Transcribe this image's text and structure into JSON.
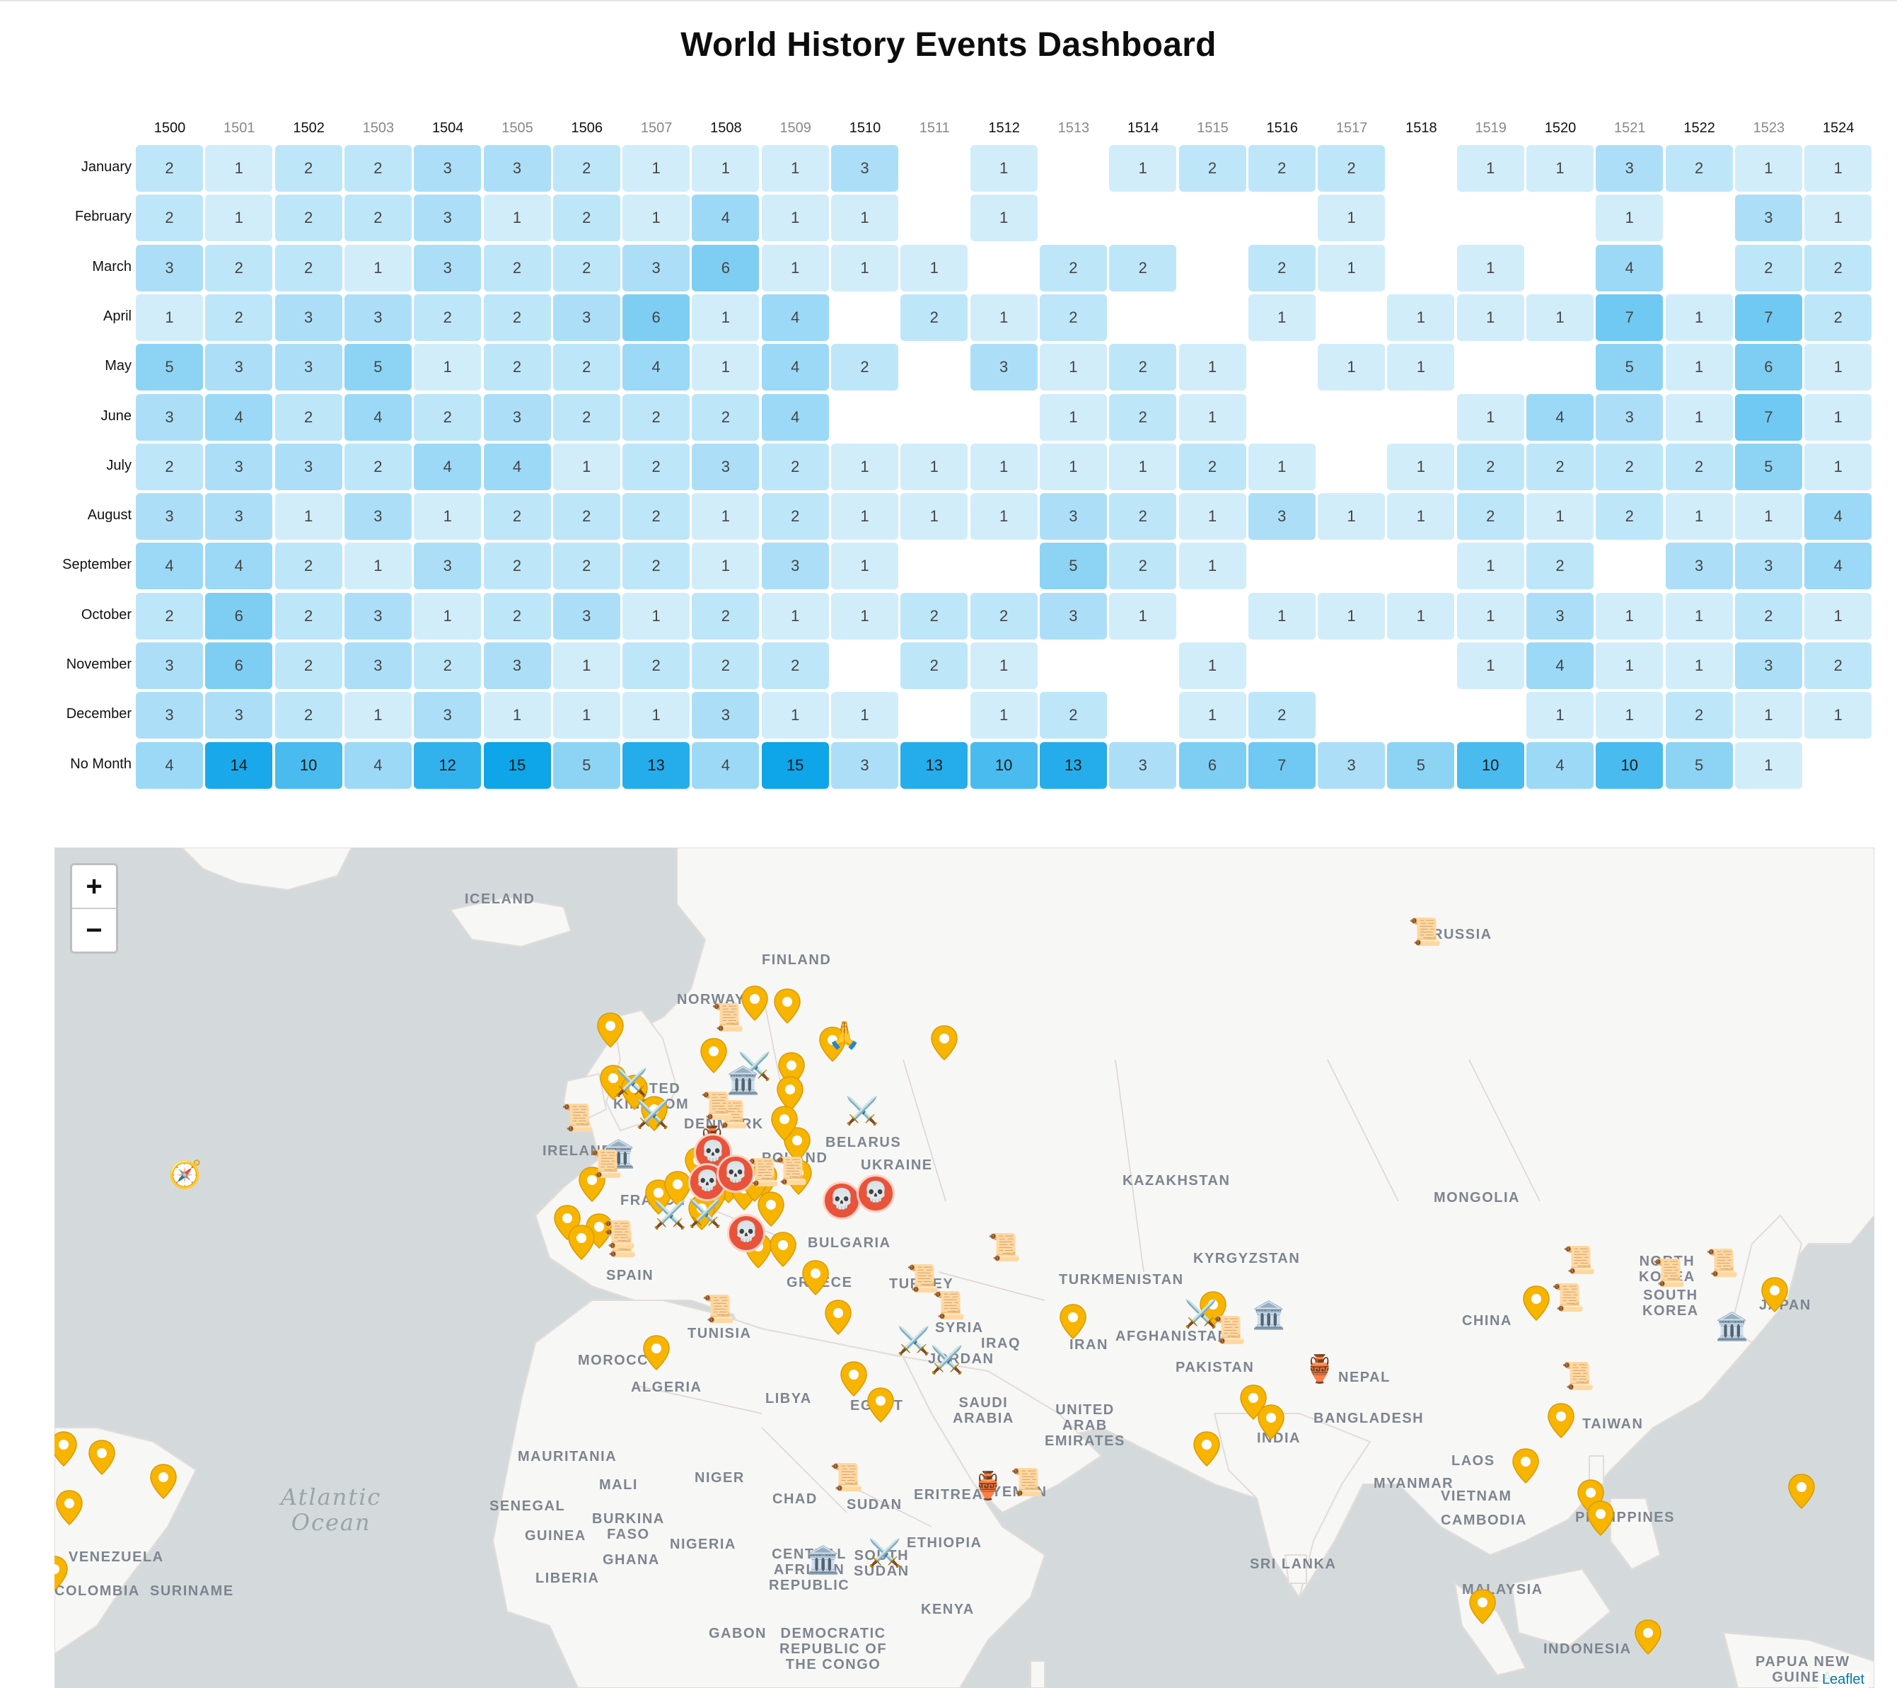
{
  "page": {
    "title": "World History Events Dashboard"
  },
  "heatmap": {
    "years": [
      "1500",
      "1501",
      "1502",
      "1503",
      "1504",
      "1505",
      "1506",
      "1507",
      "1508",
      "1509",
      "1510",
      "1511",
      "1512",
      "1513",
      "1514",
      "1515",
      "1516",
      "1517",
      "1518",
      "1519",
      "1520",
      "1521",
      "1522",
      "1523",
      "1524"
    ],
    "rows": [
      {
        "label": "January",
        "values": [
          2,
          1,
          2,
          2,
          3,
          3,
          2,
          1,
          1,
          1,
          3,
          null,
          1,
          null,
          1,
          2,
          2,
          2,
          null,
          1,
          1,
          3,
          2,
          1,
          1
        ]
      },
      {
        "label": "February",
        "values": [
          2,
          1,
          2,
          2,
          3,
          1,
          2,
          1,
          4,
          1,
          1,
          null,
          1,
          null,
          null,
          null,
          null,
          1,
          null,
          null,
          null,
          1,
          null,
          3,
          1
        ]
      },
      {
        "label": "March",
        "values": [
          3,
          2,
          2,
          1,
          3,
          2,
          2,
          3,
          6,
          1,
          1,
          1,
          null,
          2,
          2,
          null,
          2,
          1,
          null,
          1,
          null,
          4,
          null,
          2,
          2
        ]
      },
      {
        "label": "April",
        "values": [
          1,
          2,
          3,
          3,
          2,
          2,
          3,
          6,
          1,
          4,
          null,
          2,
          1,
          2,
          null,
          null,
          1,
          null,
          1,
          1,
          1,
          7,
          1,
          7,
          2
        ]
      },
      {
        "label": "May",
        "values": [
          5,
          3,
          3,
          5,
          1,
          2,
          2,
          4,
          1,
          4,
          2,
          null,
          3,
          1,
          2,
          1,
          null,
          1,
          1,
          null,
          null,
          5,
          1,
          6,
          1
        ]
      },
      {
        "label": "June",
        "values": [
          3,
          4,
          2,
          4,
          2,
          3,
          2,
          2,
          2,
          4,
          null,
          null,
          null,
          1,
          2,
          1,
          null,
          null,
          null,
          1,
          4,
          3,
          1,
          7,
          1
        ]
      },
      {
        "label": "July",
        "values": [
          2,
          3,
          3,
          2,
          4,
          4,
          1,
          2,
          3,
          2,
          1,
          1,
          1,
          1,
          1,
          2,
          1,
          null,
          1,
          2,
          2,
          2,
          2,
          5,
          1
        ]
      },
      {
        "label": "August",
        "values": [
          3,
          3,
          1,
          3,
          1,
          2,
          2,
          2,
          1,
          2,
          1,
          1,
          1,
          3,
          2,
          1,
          3,
          1,
          1,
          2,
          1,
          2,
          1,
          1,
          4
        ]
      },
      {
        "label": "September",
        "values": [
          4,
          4,
          2,
          1,
          3,
          2,
          2,
          2,
          1,
          3,
          1,
          null,
          null,
          5,
          2,
          1,
          null,
          null,
          null,
          1,
          2,
          null,
          3,
          3,
          4
        ]
      },
      {
        "label": "October",
        "values": [
          2,
          6,
          2,
          3,
          1,
          2,
          3,
          1,
          2,
          1,
          1,
          2,
          2,
          3,
          1,
          null,
          1,
          1,
          1,
          1,
          3,
          1,
          1,
          2,
          1
        ]
      },
      {
        "label": "November",
        "values": [
          3,
          6,
          2,
          3,
          2,
          3,
          1,
          2,
          2,
          2,
          null,
          2,
          1,
          null,
          null,
          1,
          null,
          null,
          null,
          1,
          4,
          1,
          1,
          3,
          2
        ]
      },
      {
        "label": "December",
        "values": [
          3,
          3,
          2,
          1,
          3,
          1,
          1,
          1,
          3,
          1,
          1,
          null,
          1,
          2,
          null,
          1,
          2,
          null,
          null,
          null,
          1,
          1,
          2,
          1,
          1
        ]
      },
      {
        "label": "No Month",
        "values": [
          4,
          14,
          10,
          4,
          12,
          15,
          5,
          13,
          4,
          15,
          3,
          13,
          10,
          13,
          3,
          6,
          7,
          3,
          5,
          10,
          4,
          10,
          5,
          1,
          null
        ]
      }
    ]
  },
  "map": {
    "zoom_in_label": "+",
    "zoom_out_label": "−",
    "attribution": "Leaflet",
    "colors": {
      "land": "#f7f7f5",
      "water": "#d4dadc",
      "pin": "#f7b500",
      "skull_marker": "#e8533a"
    },
    "labels": [
      {
        "text": "ICELAND",
        "key": "iceland"
      },
      {
        "text": "FINLAND",
        "key": "finland"
      },
      {
        "text": "NORWAY",
        "key": "norway"
      },
      {
        "text": "RUSSIA",
        "key": "russia"
      },
      {
        "text": "UNITED\nKINGDOM",
        "key": "uk"
      },
      {
        "text": "DENMARK",
        "key": "denmark"
      },
      {
        "text": "BELARUS",
        "key": "belarus"
      },
      {
        "text": "IRELAND",
        "key": "ireland"
      },
      {
        "text": "POLAND",
        "key": "poland"
      },
      {
        "text": "UKRAINE",
        "key": "ukraine"
      },
      {
        "text": "FRANCE",
        "key": "france"
      },
      {
        "text": "KAZAKHSTAN",
        "key": "kazakhstan"
      },
      {
        "text": "MONGOLIA",
        "key": "mongolia"
      },
      {
        "text": "BULGARIA",
        "key": "bulgaria"
      },
      {
        "text": "KYRGYZSTAN",
        "key": "kyrgyzstan"
      },
      {
        "text": "SPAIN",
        "key": "spain"
      },
      {
        "text": "GREECE",
        "key": "greece"
      },
      {
        "text": "TURKEY",
        "key": "turkey"
      },
      {
        "text": "TURKMENISTAN",
        "key": "turkmenistan"
      },
      {
        "text": "NORTH\nKOREA",
        "key": "nkorea"
      },
      {
        "text": "SOUTH\nKOREA",
        "key": "skorea"
      },
      {
        "text": "JAPAN",
        "key": "japan"
      },
      {
        "text": "CHINA",
        "key": "china"
      },
      {
        "text": "TUNISIA",
        "key": "tunisia"
      },
      {
        "text": "SYRIA",
        "key": "syria"
      },
      {
        "text": "IRAQ",
        "key": "iraq"
      },
      {
        "text": "IRAN",
        "key": "iran"
      },
      {
        "text": "AFGHANISTAN",
        "key": "afghanistan"
      },
      {
        "text": "MOROCCO",
        "key": "morocco"
      },
      {
        "text": "JORDAN",
        "key": "jordan"
      },
      {
        "text": "PAKISTAN",
        "key": "pakistan"
      },
      {
        "text": "NEPAL",
        "key": "nepal"
      },
      {
        "text": "ALGERIA",
        "key": "algeria"
      },
      {
        "text": "LIBYA",
        "key": "libya"
      },
      {
        "text": "EGYPT",
        "key": "egypt"
      },
      {
        "text": "SAUDI\nARABIA",
        "key": "saudi"
      },
      {
        "text": "UNITED\nARAB\nEMIRATES",
        "key": "uae"
      },
      {
        "text": "INDIA",
        "key": "india"
      },
      {
        "text": "BANGLADESH",
        "key": "bangladesh"
      },
      {
        "text": "TAIWAN",
        "key": "taiwan"
      },
      {
        "text": "MAURITANIA",
        "key": "mauritania"
      },
      {
        "text": "MALI",
        "key": "mali"
      },
      {
        "text": "NIGER",
        "key": "niger"
      },
      {
        "text": "CHAD",
        "key": "chad"
      },
      {
        "text": "SUDAN",
        "key": "sudan"
      },
      {
        "text": "ERITREA",
        "key": "eritrea"
      },
      {
        "text": "YEMEN",
        "key": "yemen"
      },
      {
        "text": "LAOS",
        "key": "laos"
      },
      {
        "text": "MYANMAR",
        "key": "myanmar"
      },
      {
        "text": "VIETNAM",
        "key": "vietnam"
      },
      {
        "text": "SENEGAL",
        "key": "senegal"
      },
      {
        "text": "BURKINA\nFASO",
        "key": "burkina"
      },
      {
        "text": "CAMBODIA",
        "key": "cambodia"
      },
      {
        "text": "PHILIPPINES",
        "key": "philippines"
      },
      {
        "text": "GUINEA",
        "key": "guinea"
      },
      {
        "text": "NIGERIA",
        "key": "nigeria"
      },
      {
        "text": "ETHIOPIA",
        "key": "ethiopia"
      },
      {
        "text": "GHANA",
        "key": "ghana"
      },
      {
        "text": "CENTRAL\nAFRICAN\nREPUBLIC",
        "key": "car"
      },
      {
        "text": "SOUTH\nSUDAN",
        "key": "ssudan"
      },
      {
        "text": "SRI LANKA",
        "key": "srilanka"
      },
      {
        "text": "LIBERIA",
        "key": "liberia"
      },
      {
        "text": "MALAYSIA",
        "key": "malaysia"
      },
      {
        "text": "KENYA",
        "key": "kenya"
      },
      {
        "text": "GABON",
        "key": "gabon"
      },
      {
        "text": "DEMOCRATIC\nREPUBLIC OF\nTHE CONGO",
        "key": "drc"
      },
      {
        "text": "INDONESIA",
        "key": "indonesia"
      },
      {
        "text": "PAPUA NEW\nGUINEA",
        "key": "png"
      },
      {
        "text": "VENEZUELA",
        "key": "venezuela"
      },
      {
        "text": "SURINAME",
        "key": "suriname"
      },
      {
        "text": "COLOMBIA",
        "key": "colombia"
      }
    ],
    "ocean_labels": [
      {
        "text": "Atlantic\nOcean",
        "key": "atlantic"
      }
    ],
    "event_markers": [
      {
        "icon": "scroll-icon",
        "glyph": "📜",
        "key": "m1"
      },
      {
        "icon": "scroll-icon",
        "glyph": "📜",
        "key": "m2"
      },
      {
        "icon": "praying-hands-icon",
        "glyph": "🙏",
        "key": "m3"
      },
      {
        "icon": "compass-icon",
        "glyph": "🧭",
        "key": "m4"
      },
      {
        "icon": "crossed-swords-icon",
        "glyph": "⚔️",
        "key": "m5"
      },
      {
        "icon": "crossed-swords-icon",
        "glyph": "⚔️",
        "key": "m6"
      },
      {
        "icon": "crossed-swords-icon",
        "glyph": "⚔️",
        "key": "m7"
      },
      {
        "icon": "classical-building-icon",
        "glyph": "🏛️",
        "key": "m8"
      },
      {
        "icon": "classical-building-icon",
        "glyph": "🏛️",
        "key": "m9"
      },
      {
        "icon": "scroll-icon",
        "glyph": "📜",
        "key": "m10"
      },
      {
        "icon": "scroll-icon",
        "glyph": "📜",
        "key": "m11"
      },
      {
        "icon": "crossed-swords-icon",
        "glyph": "⚔️",
        "key": "m12"
      },
      {
        "icon": "scroll-icon",
        "glyph": "📜",
        "key": "m13"
      },
      {
        "icon": "amphora-icon",
        "glyph": "🏺",
        "key": "m14"
      },
      {
        "icon": "scroll-icon",
        "glyph": "📜",
        "key": "m15"
      },
      {
        "icon": "scroll-icon",
        "glyph": "📜",
        "key": "m16"
      },
      {
        "icon": "scroll-icon",
        "glyph": "📜",
        "key": "m17"
      },
      {
        "icon": "crossed-swords-icon",
        "glyph": "⚔️",
        "key": "m18"
      },
      {
        "icon": "crossed-swords-icon",
        "glyph": "⚔️",
        "key": "m19"
      },
      {
        "icon": "scroll-icon",
        "glyph": "📜",
        "key": "m20"
      },
      {
        "icon": "scroll-icon",
        "glyph": "📜",
        "key": "m21"
      },
      {
        "icon": "scroll-icon",
        "glyph": "📜",
        "key": "m22"
      },
      {
        "icon": "crossed-swords-icon",
        "glyph": "⚔️",
        "key": "m23"
      },
      {
        "icon": "scroll-icon",
        "glyph": "📜",
        "key": "m24"
      },
      {
        "icon": "amphora-icon",
        "glyph": "🏺",
        "key": "m25"
      },
      {
        "icon": "scroll-icon",
        "glyph": "📜",
        "key": "m26"
      },
      {
        "icon": "scroll-icon",
        "glyph": "📜",
        "key": "m27"
      },
      {
        "icon": "scroll-icon",
        "glyph": "📜",
        "key": "m28"
      },
      {
        "icon": "classical-building-icon",
        "glyph": "🏛️",
        "key": "m29"
      },
      {
        "icon": "scroll-icon",
        "glyph": "📜",
        "key": "m30"
      },
      {
        "icon": "scroll-icon",
        "glyph": "📜",
        "key": "m31"
      },
      {
        "icon": "scroll-icon",
        "glyph": "📜",
        "key": "m32"
      },
      {
        "icon": "scroll-icon",
        "glyph": "📜",
        "key": "m33"
      },
      {
        "icon": "scroll-icon",
        "glyph": "📜",
        "key": "m34"
      },
      {
        "icon": "classical-building-icon",
        "glyph": "🏛️",
        "key": "m35"
      },
      {
        "icon": "crossed-swords-icon",
        "glyph": "⚔️",
        "key": "m36"
      },
      {
        "icon": "crossed-swords-icon",
        "glyph": "⚔️",
        "key": "m37"
      },
      {
        "icon": "scroll-icon",
        "glyph": "📜",
        "key": "m38"
      },
      {
        "icon": "amphora-icon",
        "glyph": "🏺",
        "key": "m39"
      },
      {
        "icon": "scroll-icon",
        "glyph": "📜",
        "key": "m40"
      },
      {
        "icon": "classical-building-icon",
        "glyph": "🏛️",
        "key": "m41"
      },
      {
        "icon": "crossed-swords-icon",
        "glyph": "⚔️",
        "key": "m42"
      }
    ],
    "skull_markers": [
      {
        "icon": "skull-icon",
        "glyph": "💀",
        "key": "s1"
      },
      {
        "icon": "skull-icon",
        "glyph": "💀",
        "key": "s2"
      },
      {
        "icon": "skull-icon",
        "glyph": "💀",
        "key": "s3"
      },
      {
        "icon": "skull-icon",
        "glyph": "💀",
        "key": "s4"
      },
      {
        "icon": "skull-icon",
        "glyph": "💀",
        "key": "s5"
      },
      {
        "icon": "skull-icon",
        "glyph": "💀",
        "key": "s6"
      }
    ]
  }
}
